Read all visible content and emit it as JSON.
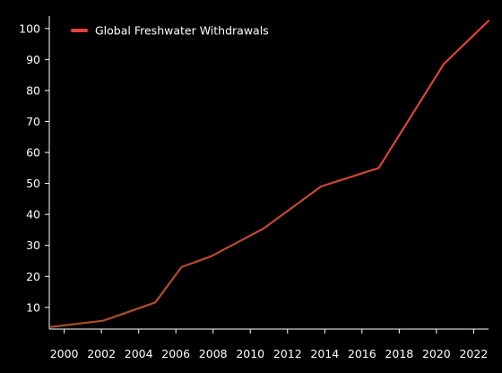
{
  "chart_data": {
    "type": "line",
    "title": "",
    "xlabel": "",
    "ylabel": "",
    "xlim": [
      1999.2,
      2022.8
    ],
    "ylim": [
      3,
      104
    ],
    "grid": false,
    "legend_position": "top-left",
    "x_ticks": [
      2000,
      2002,
      2004,
      2006,
      2008,
      2010,
      2012,
      2014,
      2016,
      2018,
      2020,
      2022
    ],
    "x_tick_labels": [
      "2000",
      "2002",
      "2004",
      "2006",
      "2008",
      "2010",
      "2012",
      "2014",
      "2016",
      "2018",
      "2020",
      "2022"
    ],
    "y_ticks": [
      10,
      20,
      30,
      40,
      50,
      60,
      70,
      80,
      90,
      100
    ],
    "y_tick_labels": [
      "10",
      "20",
      "30",
      "40",
      "50",
      "60",
      "70",
      "80",
      "90",
      "100"
    ],
    "series": [
      {
        "name": "Global Freshwater Withdrawals",
        "color_start": "#a0502a",
        "color_end": "#e8413a",
        "legend_color": "#e8413a",
        "x": [
          1999.3,
          2002.1,
          2004.9,
          2006.3,
          2007.9,
          2010.7,
          2013.8,
          2016.9,
          2020.4,
          2022.8
        ],
        "y": [
          3.7,
          5.7,
          11.6,
          23.0,
          26.5,
          35.4,
          49.0,
          55.0,
          88.6,
          102.5
        ]
      }
    ]
  }
}
